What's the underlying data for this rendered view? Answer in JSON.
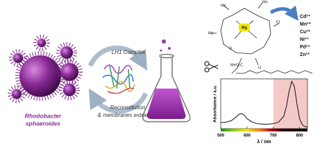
{
  "organism": {
    "line1": "Rhodobacter",
    "line2": "sphaeroides"
  },
  "complex_label": "LH1 Complex",
  "process": {
    "line1": "Reconstitution",
    "line2": "& membranes extraction"
  },
  "molecule": {
    "center": "Mg",
    "labels": [
      "Me",
      "Me",
      "Et",
      "Me",
      "O",
      "MeO₂C",
      "O"
    ]
  },
  "metals": [
    "Cd²⁺",
    "Mn²⁺",
    "Cu²⁺",
    "Ni²⁺",
    "Pd²⁺",
    "Zn²⁺"
  ],
  "chart_data": {
    "type": "line",
    "x_label": "λ / nm",
    "y_label": "Absorbance / a.u.",
    "x": [
      500,
      520,
      540,
      560,
      570,
      580,
      590,
      600,
      620,
      640,
      660,
      680,
      700,
      720,
      740,
      750,
      760,
      770,
      780,
      790,
      800,
      810,
      820,
      830
    ],
    "values": [
      0.12,
      0.13,
      0.16,
      0.24,
      0.29,
      0.3,
      0.27,
      0.2,
      0.13,
      0.1,
      0.09,
      0.09,
      0.1,
      0.13,
      0.25,
      0.45,
      0.75,
      0.95,
      0.85,
      0.5,
      0.2,
      0.08,
      0.04,
      0.03
    ],
    "color": "#111111",
    "highlight_range": [
      700,
      830
    ],
    "highlight_color": "#f6c9c9",
    "xlim": [
      500,
      830
    ],
    "ylim": [
      0,
      1
    ],
    "xticks": [
      500,
      600,
      700,
      800
    ]
  }
}
